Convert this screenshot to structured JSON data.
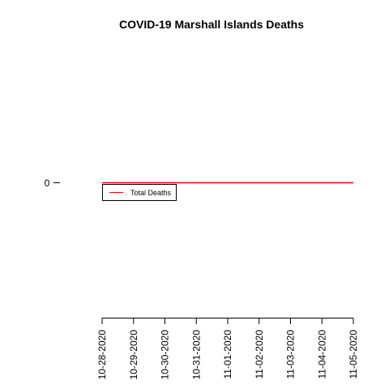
{
  "chart_data": {
    "type": "line",
    "title": "COVID-19 Marshall Islands Deaths",
    "xlabel": "",
    "ylabel": "",
    "categories": [
      "10-28-2020",
      "10-29-2020",
      "10-30-2020",
      "10-31-2020",
      "11-01-2020",
      "11-02-2020",
      "11-03-2020",
      "11-04-2020",
      "11-05-2020"
    ],
    "y_ticks": [
      "0"
    ],
    "series": [
      {
        "name": "Total Deaths",
        "color": "#ff0000",
        "values": [
          0,
          0,
          0,
          0,
          0,
          0,
          0,
          0,
          0
        ]
      }
    ],
    "legend_position": "top-left",
    "grid": false
  }
}
